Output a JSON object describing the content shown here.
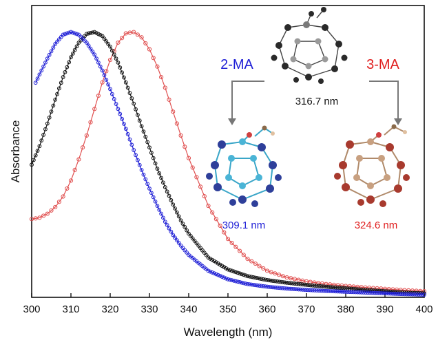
{
  "chart_data": {
    "type": "line",
    "xlabel": "Wavelength (nm)",
    "ylabel": "Absorbance",
    "xlim": [
      300,
      400
    ],
    "ylim": [
      0,
      1.1
    ],
    "x_ticks": [
      300,
      310,
      320,
      330,
      340,
      350,
      360,
      370,
      380,
      390,
      400
    ],
    "y_tick_labels": false,
    "grid": false,
    "series": [
      {
        "color": "#1f1fd6",
        "marker": "open-circle",
        "x": [
          301,
          302,
          304,
          306,
          308,
          310,
          312,
          314,
          316,
          318,
          320,
          322,
          324,
          326,
          328,
          330,
          332,
          334,
          336,
          338,
          340,
          345,
          350,
          355,
          360,
          365,
          370,
          375,
          380,
          385,
          390,
          395,
          400
        ],
        "y": [
          0.809,
          0.84,
          0.9,
          0.955,
          0.99,
          1.0,
          0.99,
          0.96,
          0.915,
          0.855,
          0.785,
          0.71,
          0.635,
          0.555,
          0.48,
          0.41,
          0.345,
          0.285,
          0.235,
          0.195,
          0.16,
          0.1,
          0.068,
          0.05,
          0.04,
          0.033,
          0.028,
          0.024,
          0.021,
          0.018,
          0.015,
          0.012,
          0.01
        ]
      },
      {
        "color": "#111111",
        "marker": "open-circle",
        "x": [
          300,
          302,
          304,
          306,
          308,
          310,
          312,
          314,
          316,
          318,
          320,
          322,
          324,
          326,
          328,
          330,
          332,
          334,
          336,
          338,
          340,
          345,
          350,
          355,
          360,
          365,
          370,
          375,
          380,
          385,
          390,
          395,
          400
        ],
        "y": [
          0.5,
          0.57,
          0.655,
          0.745,
          0.83,
          0.905,
          0.96,
          0.993,
          1.0,
          0.985,
          0.945,
          0.885,
          0.81,
          0.73,
          0.645,
          0.565,
          0.485,
          0.415,
          0.35,
          0.29,
          0.24,
          0.15,
          0.105,
          0.08,
          0.065,
          0.055,
          0.047,
          0.04,
          0.034,
          0.028,
          0.023,
          0.018,
          0.015
        ]
      },
      {
        "color": "#e05050",
        "marker": "open-circle",
        "x": [
          300,
          302,
          304,
          306,
          308,
          310,
          312,
          314,
          316,
          318,
          320,
          322,
          324,
          326,
          328,
          330,
          332,
          334,
          336,
          338,
          340,
          345,
          350,
          355,
          360,
          365,
          370,
          375,
          380,
          385,
          390,
          395,
          400
        ],
        "y": [
          0.295,
          0.3,
          0.315,
          0.34,
          0.38,
          0.44,
          0.52,
          0.61,
          0.71,
          0.81,
          0.895,
          0.96,
          0.995,
          1.0,
          0.98,
          0.935,
          0.87,
          0.79,
          0.7,
          0.61,
          0.525,
          0.345,
          0.22,
          0.145,
          0.1,
          0.075,
          0.06,
          0.05,
          0.043,
          0.037,
          0.032,
          0.027,
          0.023
        ]
      }
    ],
    "annotations": {
      "center": {
        "text": "316.7 nm",
        "color": "#111111"
      },
      "left": {
        "arrow_label": "2-MA",
        "value_text": "309.1 nm",
        "color": "#1f1fd6"
      },
      "right": {
        "arrow_label": "3-MA",
        "value_text": "324.6 nm",
        "color": "#e02020"
      }
    }
  }
}
